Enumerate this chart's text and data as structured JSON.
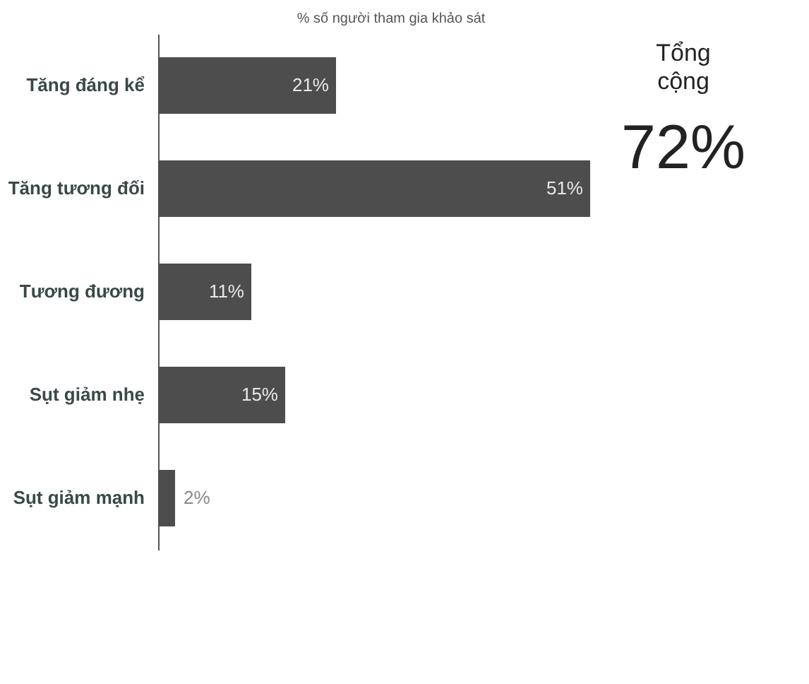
{
  "chart_data": {
    "type": "bar",
    "orientation": "horizontal",
    "title": "% số người tham gia khảo sát",
    "categories": [
      "Tăng đáng kể",
      "Tăng tương đối",
      "Tương đương",
      "Sụt giảm nhẹ",
      "Sụt giảm mạnh"
    ],
    "series": [
      {
        "color": "#4d4d4d",
        "values": [
          21,
          51,
          11,
          15,
          2
        ],
        "value_labels": [
          "21%",
          "51%",
          "11%",
          "15%",
          "2%"
        ]
      }
    ],
    "annotations": [
      "Tổng cộng",
      "72%"
    ],
    "grid": false
  }
}
